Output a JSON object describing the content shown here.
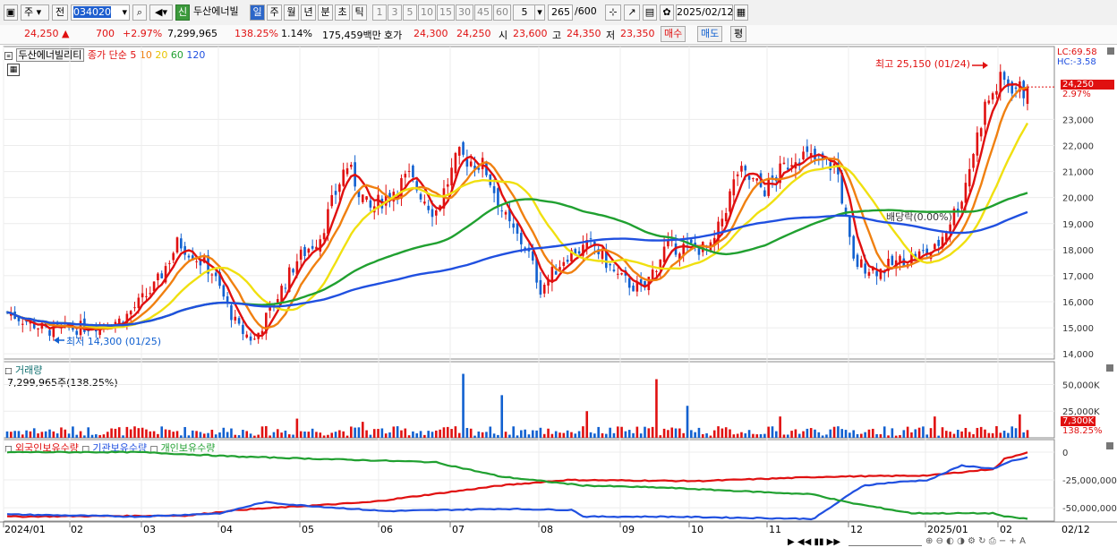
{
  "toolbar": {
    "type_select": "주",
    "prev_label": "전",
    "code": "034020",
    "stock_name": "두산에너빌",
    "badge": "신",
    "periods": [
      "일",
      "주",
      "월",
      "년",
      "분",
      "초",
      "틱"
    ],
    "active_period": "일",
    "intervals": [
      "1",
      "3",
      "5",
      "10",
      "15",
      "30",
      "45",
      "60"
    ],
    "interval_input": "5",
    "count": "265",
    "total": "/600",
    "date": "2025/02/12"
  },
  "quote": {
    "price": "24,250",
    "arrow": "▲",
    "change": "700",
    "change_pct": "+2.97%",
    "volume": "7,299,965",
    "volume_ratio": "138.25%",
    "turnover": "1.14%",
    "amount": "175,459백만",
    "ask_label": "호가",
    "ask": "24,300",
    "bid": "24,250",
    "open_label": "시",
    "open": "23,600",
    "high_label": "고",
    "high": "24,350",
    "low_label": "저",
    "low": "23,350",
    "buy_button": "매수",
    "sell_button": "매도",
    "extra_button": "평"
  },
  "price_panel": {
    "series_label": "두산에너빌리티",
    "ma_label": "종가 단순",
    "ma_periods": [
      "5",
      "10",
      "20",
      "60",
      "120"
    ],
    "lc": "LC:69.58",
    "hc": "HC:-3.58",
    "last_price": "24,250",
    "last_pct": "2.97%",
    "dividend_note": "배당락(0.00%)",
    "high_note": "최고 25,150 (01/24)",
    "low_note": "최저 14,300 (01/25)"
  },
  "volume_panel": {
    "title": "거래량",
    "value": "7,299,965주(138.25%)",
    "last": "7,300K",
    "last_pct": "138.25%"
  },
  "holdings_panel": {
    "legends": [
      "외국인보유수량",
      "기관보유수량",
      "개인보유수량"
    ]
  },
  "xaxis": {
    "labels": [
      "2024/01",
      "02",
      "03",
      "04",
      "05",
      "06",
      "07",
      "08",
      "09",
      "10",
      "11",
      "12",
      "2025/01",
      "02"
    ],
    "right_label": "02/12"
  },
  "colors": {
    "up": "#e01010",
    "down": "#1060d0",
    "ma5": "#e01010",
    "ma10": "#f08010",
    "ma20": "#f0e010",
    "ma60": "#20a030",
    "ma120": "#2050e0",
    "foreign": "#e01010",
    "institution": "#2050e0",
    "individual": "#20a030"
  },
  "chart_data": [
    {
      "type": "candlestick",
      "title": "두산에너빌리티",
      "ylim": [
        13800,
        25800
      ],
      "yticks": [
        14000,
        15000,
        16000,
        17000,
        18000,
        19000,
        20000,
        21000,
        22000,
        23000
      ],
      "x_months": [
        "2024/01",
        "02",
        "03",
        "04",
        "05",
        "06",
        "07",
        "08",
        "09",
        "10",
        "11",
        "12",
        "2025/01",
        "02"
      ],
      "close_monthly_approx": [
        15000,
        15200,
        16800,
        15500,
        17300,
        19500,
        21000,
        16800,
        17500,
        18200,
        21000,
        17600,
        19500,
        24250
      ],
      "ma_periods": [
        5,
        10,
        20,
        60,
        120
      ],
      "high": {
        "value": 25150,
        "date": "01/24"
      },
      "low": {
        "value": 14300,
        "date": "01/25"
      },
      "last": 24250
    },
    {
      "type": "bar",
      "title": "거래량",
      "unit": "K",
      "yticks": [
        25000,
        50000
      ],
      "last": 7300
    },
    {
      "type": "line",
      "title": "보유수량",
      "series": [
        {
          "name": "외국인보유수량"
        },
        {
          "name": "기관보유수량"
        },
        {
          "name": "개인보유수량"
        }
      ],
      "yticks": [
        0,
        -25000000,
        -50000000
      ]
    }
  ]
}
